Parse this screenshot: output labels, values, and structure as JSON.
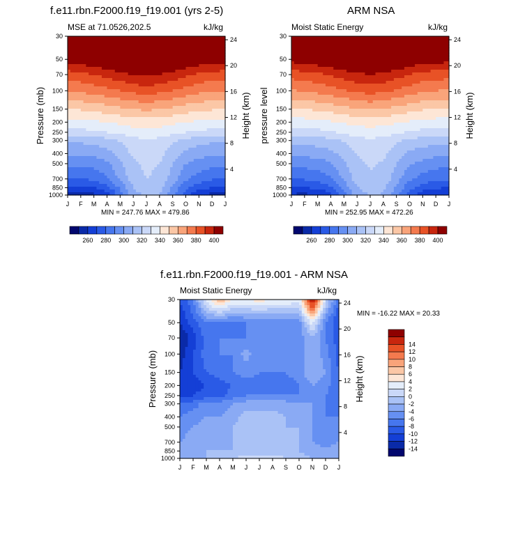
{
  "chart_data": [
    {
      "type": "contour",
      "title": "f.e11.rbn.F2000.f19_f19.001 (yrs 2-5)",
      "subtitle_left": "MSE at 71.0526,202.5",
      "subtitle_right": "kJ/kg",
      "ylabel": "Pressure (mb)",
      "ylabel_right": "Height (km)",
      "x_ticks": [
        "J",
        "F",
        "M",
        "A",
        "M",
        "J",
        "J",
        "A",
        "S",
        "O",
        "N",
        "D",
        "J"
      ],
      "y_ticks": [
        "30",
        "50",
        "70",
        "100",
        "150",
        "200",
        "250",
        "300",
        "400",
        "500",
        "700",
        "850",
        "1000"
      ],
      "y_right_ticks": [
        "24",
        "20",
        "16",
        "12",
        "8",
        "4"
      ],
      "stats": "MIN = 247.76 MAX = 479.86",
      "colorbar_labels": [
        "260",
        "280",
        "300",
        "320",
        "340",
        "360",
        "380",
        "400"
      ],
      "levels": [
        250,
        260,
        270,
        280,
        290,
        300,
        310,
        320,
        330,
        340,
        350,
        360,
        370,
        380,
        390,
        400
      ],
      "colors": [
        "#02076e",
        "#0a2aa8",
        "#143fd6",
        "#2a5ae6",
        "#4676ee",
        "#6690f2",
        "#8aaaf4",
        "#aac2f6",
        "#cad8f8",
        "#e4edfa",
        "#fde6d6",
        "#fbc7a6",
        "#f9a47a",
        "#f47a4e",
        "#e85226",
        "#c8260e",
        "#8e0000"
      ],
      "months": [
        0,
        1,
        2,
        3,
        4,
        5,
        6,
        7,
        8,
        9,
        10,
        11,
        12
      ],
      "pressures": [
        30,
        50,
        70,
        100,
        150,
        200,
        250,
        300,
        400,
        500,
        700,
        850,
        1000
      ],
      "values": [
        [
          430,
          432,
          434,
          436,
          440,
          444,
          446,
          444,
          440,
          436,
          433,
          431,
          430
        ],
        [
          405,
          407,
          410,
          413,
          417,
          420,
          422,
          420,
          416,
          412,
          408,
          406,
          405
        ],
        [
          385,
          387,
          390,
          393,
          397,
          400,
          402,
          400,
          396,
          392,
          388,
          386,
          385
        ],
        [
          370,
          372,
          374,
          377,
          380,
          383,
          385,
          383,
          380,
          376,
          373,
          371,
          370
        ],
        [
          350,
          351,
          353,
          355,
          358,
          360,
          362,
          360,
          358,
          355,
          352,
          351,
          350
        ],
        [
          336,
          337,
          338,
          340,
          342,
          344,
          345,
          344,
          342,
          340,
          338,
          337,
          336
        ],
        [
          326,
          327,
          328,
          330,
          333,
          336,
          337,
          336,
          333,
          330,
          328,
          327,
          326
        ],
        [
          311,
          312,
          313,
          316,
          321,
          326,
          329,
          327,
          322,
          317,
          314,
          312,
          311
        ],
        [
          301,
          302,
          303,
          306,
          314,
          322,
          325,
          323,
          315,
          308,
          304,
          302,
          301
        ],
        [
          292,
          293,
          294,
          298,
          308,
          318,
          322,
          320,
          310,
          300,
          296,
          293,
          292
        ],
        [
          280,
          280,
          282,
          288,
          302,
          316,
          320,
          318,
          305,
          292,
          285,
          281,
          280
        ],
        [
          268,
          268,
          270,
          276,
          292,
          310,
          316,
          314,
          298,
          282,
          274,
          270,
          268
        ],
        [
          256,
          255,
          258,
          264,
          285,
          306,
          312,
          310,
          292,
          274,
          262,
          257,
          256
        ]
      ]
    },
    {
      "type": "contour",
      "title": "ARM NSA",
      "subtitle_left": "Moist Static Energy",
      "subtitle_right": "kJ/kg",
      "ylabel": "pressure level",
      "ylabel_right": "Height (km)",
      "x_ticks": [
        "J",
        "F",
        "M",
        "A",
        "M",
        "J",
        "J",
        "A",
        "S",
        "O",
        "N",
        "D",
        "J"
      ],
      "y_ticks": [
        "30",
        "50",
        "70",
        "100",
        "150",
        "200",
        "250",
        "300",
        "400",
        "500",
        "700",
        "850",
        "1000"
      ],
      "y_right_ticks": [
        "24",
        "20",
        "16",
        "12",
        "8",
        "4"
      ],
      "stats": "MIN = 252.95 MAX = 472.26",
      "colorbar_labels": [
        "260",
        "280",
        "300",
        "320",
        "340",
        "360",
        "380",
        "400"
      ],
      "levels": [
        250,
        260,
        270,
        280,
        290,
        300,
        310,
        320,
        330,
        340,
        350,
        360,
        370,
        380,
        390,
        400
      ],
      "colors": [
        "#02076e",
        "#0a2aa8",
        "#143fd6",
        "#2a5ae6",
        "#4676ee",
        "#6690f2",
        "#8aaaf4",
        "#aac2f6",
        "#cad8f8",
        "#e4edfa",
        "#fde6d6",
        "#fbc7a6",
        "#f9a47a",
        "#f47a4e",
        "#e85226",
        "#c8260e",
        "#8e0000"
      ],
      "months": [
        0,
        1,
        2,
        3,
        4,
        5,
        6,
        7,
        8,
        9,
        10,
        11,
        12
      ],
      "pressures": [
        30,
        50,
        70,
        100,
        150,
        200,
        250,
        300,
        400,
        500,
        700,
        850,
        1000
      ],
      "values": [
        [
          428,
          430,
          432,
          434,
          438,
          442,
          444,
          442,
          438,
          434,
          431,
          429,
          428
        ],
        [
          404,
          406,
          408,
          411,
          415,
          418,
          420,
          418,
          414,
          410,
          406,
          405,
          404
        ],
        [
          384,
          386,
          388,
          391,
          395,
          398,
          400,
          398,
          394,
          390,
          386,
          385,
          384
        ],
        [
          369,
          371,
          373,
          376,
          379,
          382,
          384,
          382,
          379,
          375,
          372,
          370,
          369
        ],
        [
          349,
          350,
          352,
          354,
          357,
          359,
          361,
          359,
          357,
          354,
          351,
          350,
          349
        ],
        [
          335,
          336,
          337,
          339,
          341,
          343,
          344,
          343,
          341,
          339,
          337,
          336,
          335
        ],
        [
          325,
          326,
          327,
          329,
          332,
          335,
          336,
          335,
          332,
          329,
          327,
          326,
          325
        ],
        [
          313,
          314,
          315,
          317,
          321,
          326,
          328,
          326,
          322,
          318,
          315,
          314,
          313
        ],
        [
          302,
          303,
          304,
          307,
          314,
          321,
          324,
          322,
          315,
          308,
          305,
          303,
          302
        ],
        [
          293,
          294,
          295,
          299,
          308,
          317,
          321,
          319,
          310,
          301,
          297,
          294,
          293
        ],
        [
          281,
          281,
          283,
          289,
          302,
          315,
          319,
          317,
          304,
          292,
          286,
          282,
          281
        ],
        [
          270,
          270,
          272,
          278,
          293,
          309,
          315,
          313,
          298,
          283,
          275,
          271,
          270
        ],
        [
          258,
          257,
          260,
          266,
          286,
          305,
          311,
          309,
          292,
          275,
          264,
          259,
          258
        ]
      ]
    },
    {
      "type": "contour",
      "title": "f.e11.rbn.F2000.f19_f19.001 - ARM NSA",
      "subtitle_left": "Moist Static Energy",
      "subtitle_right": "kJ/kg",
      "ylabel": "Pressure (mb)",
      "ylabel_right": "Height (km)",
      "x_ticks": [
        "J",
        "F",
        "M",
        "A",
        "M",
        "J",
        "J",
        "A",
        "S",
        "O",
        "N",
        "D",
        "J"
      ],
      "y_ticks": [
        "30",
        "50",
        "70",
        "100",
        "150",
        "200",
        "250",
        "300",
        "400",
        "500",
        "700",
        "850",
        "1000"
      ],
      "y_right_ticks": [
        "24",
        "20",
        "16",
        "12",
        "8",
        "4"
      ],
      "stats": "MIN = -16.22 MAX =  20.33",
      "colorbar_labels": [
        "14",
        "12",
        "10",
        "8",
        "6",
        "4",
        "2",
        "0",
        "-2",
        "-4",
        "-6",
        "-8",
        "-10",
        "-12",
        "-14"
      ],
      "levels": [
        -14,
        -12,
        -10,
        -8,
        -6,
        -4,
        -2,
        0,
        2,
        4,
        6,
        8,
        10,
        12,
        14
      ],
      "colors": [
        "#02076e",
        "#0a2aa8",
        "#143fd6",
        "#2a5ae6",
        "#4676ee",
        "#6690f2",
        "#8aaaf4",
        "#aac2f6",
        "#cad8f8",
        "#e4edfa",
        "#fde6d6",
        "#fbc7a6",
        "#f9a47a",
        "#f47a4e",
        "#e85226",
        "#c8260e",
        "#8e0000"
      ],
      "months": [
        0,
        1,
        2,
        3,
        4,
        5,
        6,
        7,
        8,
        9,
        10,
        11,
        12
      ],
      "pressures": [
        30,
        50,
        70,
        100,
        150,
        200,
        250,
        300,
        400,
        500,
        700,
        850,
        1000
      ],
      "values": [
        [
          -10,
          -6,
          3,
          8,
          4,
          4,
          5,
          4,
          4,
          3,
          18,
          1,
          -8
        ],
        [
          -12,
          -9,
          -6,
          -6,
          -7,
          -6,
          -6,
          -6,
          -6,
          -5,
          3,
          -6,
          -10
        ],
        [
          -14,
          -11,
          -7,
          -6,
          -6,
          -6,
          -6,
          -6,
          -6,
          -5,
          -2,
          -6,
          -9
        ],
        [
          -13,
          -10,
          -7,
          -6,
          -6,
          -3,
          -6,
          -6,
          -6,
          -5,
          -2,
          -5,
          -9
        ],
        [
          -12,
          -10,
          -8,
          -7,
          -6,
          -5,
          -6,
          -6,
          -6,
          -5,
          -2,
          -4,
          -8
        ],
        [
          -12,
          -11,
          -10,
          -9,
          -8,
          -7,
          -7,
          -7,
          -7,
          -6,
          -4,
          -5,
          -8
        ],
        [
          -11,
          -10,
          -9,
          -9,
          -7,
          -6,
          -6,
          -6,
          -6,
          -6,
          -5,
          -6,
          -8
        ],
        [
          -8,
          -7,
          -5,
          -5,
          -4,
          -3,
          -3,
          -3,
          -3,
          -4,
          -4,
          -6,
          -7
        ],
        [
          -6,
          -5,
          -4,
          -4,
          -3,
          -1,
          -1,
          -1,
          -2,
          -3,
          -4,
          -6,
          -6
        ],
        [
          -5,
          -4,
          -3,
          -3,
          -2,
          -1,
          -1,
          -1,
          -2,
          -2,
          -4,
          -6,
          -5
        ],
        [
          -4,
          -3,
          -3,
          -3,
          -2,
          -1,
          -1,
          -1,
          -1,
          -2,
          -4,
          -5,
          -4
        ],
        [
          -3,
          -3,
          -2,
          -2,
          -2,
          -1,
          -1,
          -1,
          -1,
          -2,
          -3,
          -3,
          -3
        ],
        [
          -3,
          -2,
          -2,
          -2,
          0,
          1,
          1,
          1,
          0,
          -1,
          -2,
          -2,
          -2
        ]
      ]
    }
  ]
}
